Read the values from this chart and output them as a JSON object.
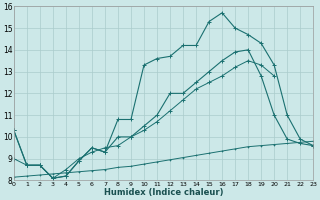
{
  "xlabel": "Humidex (Indice chaleur)",
  "bg_color": "#cce8e8",
  "grid_color": "#aacccc",
  "line_color": "#1a7070",
  "xlim": [
    0,
    23
  ],
  "ylim": [
    8,
    16
  ],
  "xticks": [
    0,
    1,
    2,
    3,
    4,
    5,
    6,
    7,
    8,
    9,
    10,
    11,
    12,
    13,
    14,
    15,
    16,
    17,
    18,
    19,
    20,
    21,
    22,
    23
  ],
  "yticks": [
    8,
    9,
    10,
    11,
    12,
    13,
    14,
    15,
    16
  ],
  "line1_x": [
    0,
    1,
    2,
    3,
    4,
    5,
    6,
    7,
    8,
    9,
    10,
    11,
    12,
    13,
    14,
    15,
    16,
    17,
    18,
    19,
    20,
    21,
    22,
    23
  ],
  "line1_y": [
    10.3,
    8.7,
    8.7,
    8.1,
    8.2,
    8.9,
    9.5,
    9.3,
    10.8,
    10.8,
    13.3,
    13.6,
    13.7,
    14.2,
    14.2,
    15.3,
    15.7,
    15.0,
    14.7,
    14.3,
    13.3,
    11.0,
    9.9,
    9.6
  ],
  "line2_x": [
    0,
    1,
    2,
    3,
    4,
    5,
    6,
    7,
    8,
    9,
    10,
    11,
    12,
    13,
    14,
    15,
    16,
    17,
    18,
    19,
    20,
    21,
    22,
    23
  ],
  "line2_y": [
    10.3,
    8.7,
    8.7,
    8.1,
    8.2,
    8.9,
    9.5,
    9.3,
    10.0,
    10.0,
    10.5,
    11.0,
    12.0,
    12.0,
    12.5,
    13.0,
    13.5,
    13.9,
    14.0,
    12.8,
    11.0,
    9.9,
    9.7,
    9.6
  ],
  "line3_x": [
    0,
    1,
    2,
    3,
    4,
    5,
    6,
    7,
    8,
    9,
    10,
    11,
    12,
    13,
    14,
    15,
    16,
    17,
    18,
    19,
    20
  ],
  "line3_y": [
    9.0,
    8.7,
    8.7,
    8.1,
    8.5,
    9.0,
    9.3,
    9.5,
    9.6,
    10.0,
    10.3,
    10.7,
    11.2,
    11.7,
    12.2,
    12.5,
    12.8,
    13.2,
    13.5,
    13.3,
    12.8
  ],
  "line4_x": [
    0,
    1,
    2,
    3,
    4,
    5,
    6,
    7,
    8,
    9,
    10,
    11,
    12,
    13,
    14,
    15,
    16,
    17,
    18,
    19,
    20,
    21,
    22,
    23
  ],
  "line4_y": [
    8.15,
    8.2,
    8.25,
    8.3,
    8.35,
    8.4,
    8.45,
    8.5,
    8.6,
    8.65,
    8.75,
    8.85,
    8.95,
    9.05,
    9.15,
    9.25,
    9.35,
    9.45,
    9.55,
    9.6,
    9.65,
    9.7,
    9.75,
    9.8
  ]
}
